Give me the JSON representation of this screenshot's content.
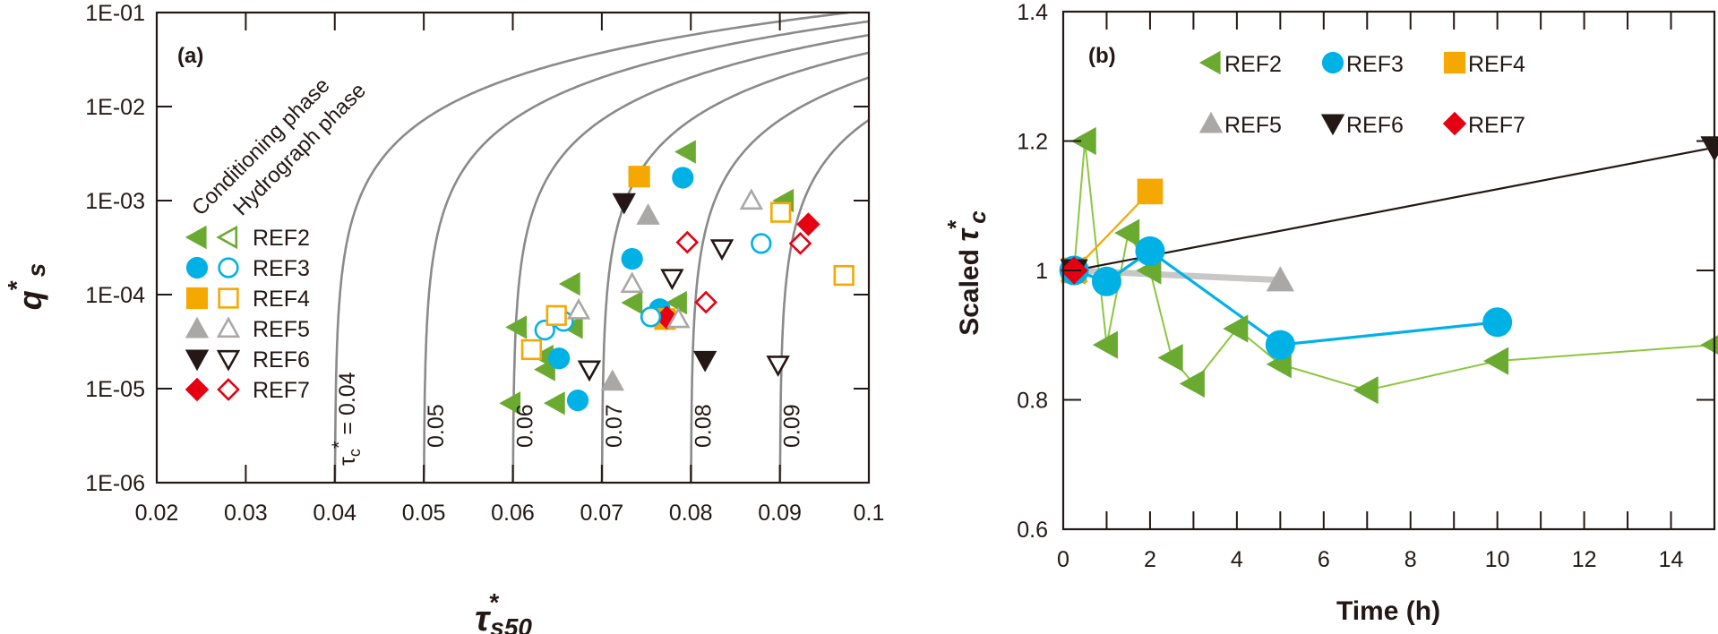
{
  "colors": {
    "REF2": "#6aaa30",
    "REF2_line": "#8cc63f",
    "REF3": "#00b1e6",
    "REF4": "#f5a800",
    "REF5": "#aaa8a6",
    "REF5_line": "#c8c7c6",
    "REF6": "#231815",
    "REF7": "#e50012",
    "curve": "#8a8a8a",
    "axis": "#231815"
  },
  "chart_data": [
    {
      "panel": "(a)",
      "type": "scatter",
      "xlabel_main": "τ",
      "xlabel_sup": "*",
      "xlabel_sub": "s50",
      "ylabel_main": "q",
      "ylabel_sup": "*",
      "ylabel_sub": "s",
      "xscale": "linear",
      "yscale": "log",
      "xlim": [
        0.02,
        0.1
      ],
      "ylim": [
        1e-06,
        0.1
      ],
      "x_ticks": [
        "0.02",
        "0.03",
        "0.04",
        "0.05",
        "0.06",
        "0.07",
        "0.08",
        "0.09",
        "0.1"
      ],
      "y_ticks": [
        "1E-06",
        "1E-05",
        "1E-04",
        "1E-03",
        "1E-02",
        "1E-01"
      ],
      "legend": {
        "placement": "left",
        "phase_headers": [
          "Conditioning phase",
          "Hydrograph phase"
        ],
        "entries": [
          "REF2",
          "REF3",
          "REF4",
          "REF5",
          "REF6",
          "REF7"
        ]
      },
      "curves": {
        "label_prefix": "τc* = ",
        "tau_c": [
          0.04,
          0.05,
          0.06,
          0.07,
          0.08,
          0.09
        ],
        "labels": [
          "0.04",
          "0.05",
          "0.06",
          "0.07",
          "0.08",
          "0.09"
        ]
      },
      "series": [
        {
          "name": "REF2",
          "marker": "triangle-left",
          "phase": "conditioning",
          "filled": true,
          "points": [
            [
              0.0795,
              0.0033
            ],
            [
              0.0905,
              0.001
            ],
            [
              0.0665,
              0.00013
            ],
            [
              0.0605,
              4.5e-05
            ],
            [
              0.0668,
              4.5e-05
            ],
            [
              0.0635,
              2.2e-05
            ],
            [
              0.0637,
              1.6e-05
            ],
            [
              0.0598,
              7e-06
            ],
            [
              0.0648,
              7e-06
            ],
            [
              0.0735,
              8.2e-05
            ],
            [
              0.0785,
              8.2e-05
            ]
          ]
        },
        {
          "name": "REF3",
          "marker": "circle",
          "phase": "conditioning",
          "filled": true,
          "points": [
            [
              0.0791,
              0.00175
            ],
            [
              0.0734,
              0.00024
            ],
            [
              0.0765,
              7e-05
            ],
            [
              0.0652,
              2.1e-05
            ],
            [
              0.0673,
              7.5e-06
            ]
          ]
        },
        {
          "name": "REF4",
          "marker": "square",
          "phase": "conditioning",
          "filled": true,
          "points": [
            [
              0.0742,
              0.0018
            ],
            [
              0.0771,
              5.5e-05
            ]
          ]
        },
        {
          "name": "REF5",
          "marker": "triangle-up",
          "phase": "conditioning",
          "filled": true,
          "points": [
            [
              0.0752,
              0.0007
            ],
            [
              0.0712,
              1.2e-05
            ]
          ]
        },
        {
          "name": "REF6",
          "marker": "triangle-down",
          "phase": "conditioning",
          "filled": true,
          "points": [
            [
              0.0725,
              0.00095
            ],
            [
              0.0816,
              2e-05
            ]
          ]
        },
        {
          "name": "REF7",
          "marker": "diamond",
          "phase": "conditioning",
          "filled": true,
          "points": [
            [
              0.0932,
              0.00056
            ],
            [
              0.0773,
              5.7e-05
            ]
          ]
        },
        {
          "name": "REF2",
          "marker": "triangle-left",
          "phase": "hydrograph",
          "filled": false,
          "points": []
        },
        {
          "name": "REF3",
          "marker": "circle",
          "phase": "hydrograph",
          "filled": false,
          "points": [
            [
              0.0879,
              0.00035
            ],
            [
              0.0657,
              5.2e-05
            ],
            [
              0.0636,
              4.2e-05
            ],
            [
              0.0755,
              5.8e-05
            ]
          ]
        },
        {
          "name": "REF4",
          "marker": "square",
          "phase": "hydrograph",
          "filled": false,
          "points": [
            [
              0.0901,
              0.00075
            ],
            [
              0.0972,
              0.00016
            ],
            [
              0.0649,
              6e-05
            ],
            [
              0.0621,
              2.6e-05
            ]
          ]
        },
        {
          "name": "REF5",
          "marker": "triangle-up",
          "phase": "hydrograph",
          "filled": false,
          "points": [
            [
              0.0868,
              0.001
            ],
            [
              0.0674,
              6.8e-05
            ],
            [
              0.0734,
              0.00013
            ],
            [
              0.0786,
              5.5e-05
            ]
          ]
        },
        {
          "name": "REF6",
          "marker": "triangle-down",
          "phase": "hydrograph",
          "filled": false,
          "points": [
            [
              0.0835,
              0.00031
            ],
            [
              0.0779,
              0.00015
            ],
            [
              0.0686,
              1.6e-05
            ],
            [
              0.0898,
              1.8e-05
            ]
          ]
        },
        {
          "name": "REF7",
          "marker": "diamond",
          "phase": "hydrograph",
          "filled": false,
          "points": [
            [
              0.0923,
              0.00035
            ],
            [
              0.0796,
              0.00036
            ],
            [
              0.0817,
              8.3e-05
            ]
          ]
        }
      ]
    },
    {
      "panel": "(b)",
      "type": "line",
      "xlabel": "Time (h)",
      "ylabel_main": "Scaled ",
      "ylabel_greek": "τ",
      "ylabel_sup": "*",
      "ylabel_sub": "c",
      "xlim": [
        0,
        15
      ],
      "ylim": [
        0.6,
        1.4
      ],
      "x_ticks": [
        "0",
        "2",
        "4",
        "6",
        "8",
        "10",
        "12",
        "14"
      ],
      "y_ticks": [
        "0.6",
        "0.8",
        "1",
        "1.2",
        "1.4"
      ],
      "grid": false,
      "legend": {
        "placement": "top",
        "entries": [
          "REF2",
          "REF3",
          "REF4",
          "REF5",
          "REF6",
          "REF7"
        ]
      },
      "series": [
        {
          "name": "REF2",
          "marker": "triangle-left",
          "x": [
            0.25,
            0.5,
            1.0,
            1.5,
            2.0,
            2.5,
            3.0,
            4.0,
            5.0,
            7.0,
            10.0,
            15.0
          ],
          "y": [
            1.0,
            1.2,
            0.885,
            1.058,
            1.0,
            0.865,
            0.825,
            0.91,
            0.855,
            0.815,
            0.86,
            0.885
          ]
        },
        {
          "name": "REF3",
          "marker": "circle",
          "x": [
            0.25,
            1.0,
            2.0,
            5.0,
            10.0
          ],
          "y": [
            1.0,
            0.983,
            1.03,
            0.885,
            0.92
          ]
        },
        {
          "name": "REF4",
          "marker": "square",
          "x": [
            0.25,
            2.0
          ],
          "y": [
            1.0,
            1.122
          ]
        },
        {
          "name": "REF5",
          "marker": "triangle-up",
          "x": [
            0.25,
            5.0
          ],
          "y": [
            1.0,
            0.985
          ]
        },
        {
          "name": "REF6",
          "marker": "triangle-down",
          "x": [
            0.25,
            15.0
          ],
          "y": [
            1.0,
            1.19
          ]
        },
        {
          "name": "REF7",
          "marker": "diamond",
          "x": [
            0.25
          ],
          "y": [
            1.0
          ]
        }
      ]
    }
  ]
}
